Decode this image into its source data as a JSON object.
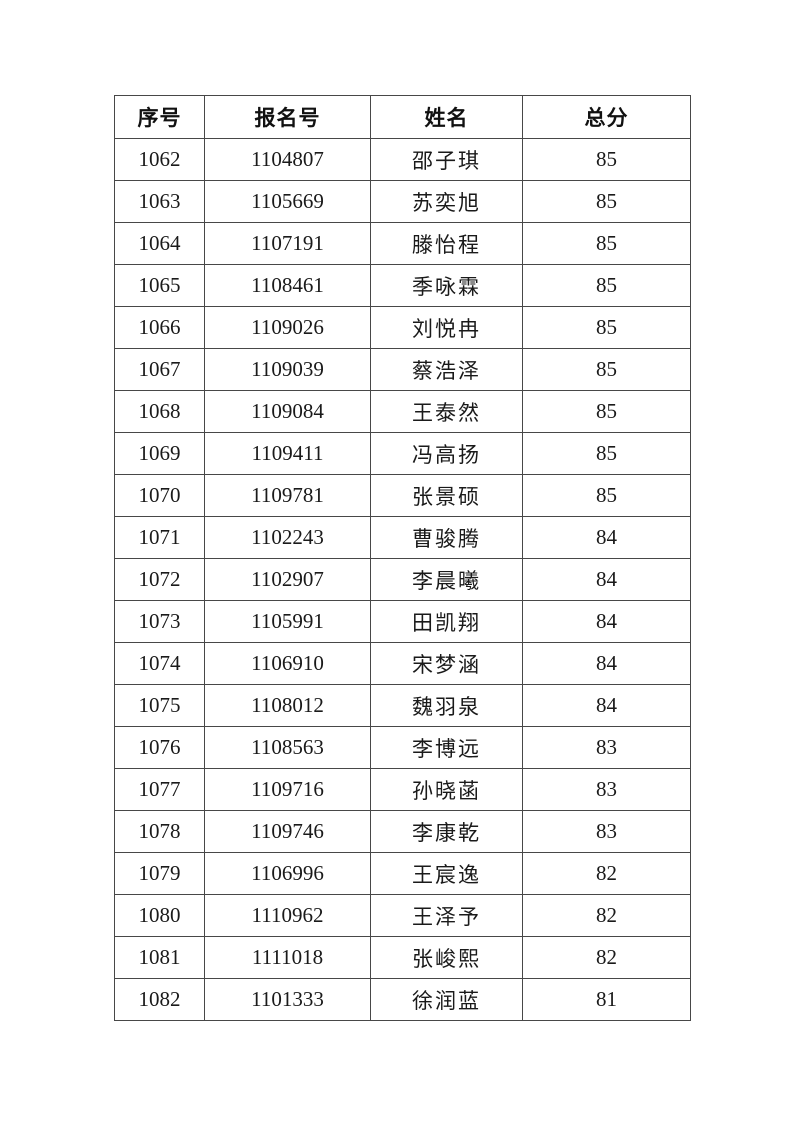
{
  "table": {
    "headers": [
      "序号",
      "报名号",
      "姓名",
      "总分"
    ],
    "rows": [
      [
        "1062",
        "1104807",
        "邵子琪",
        "85"
      ],
      [
        "1063",
        "1105669",
        "苏奕旭",
        "85"
      ],
      [
        "1064",
        "1107191",
        "滕怡程",
        "85"
      ],
      [
        "1065",
        "1108461",
        "季咏霖",
        "85"
      ],
      [
        "1066",
        "1109026",
        "刘悦冉",
        "85"
      ],
      [
        "1067",
        "1109039",
        "蔡浩泽",
        "85"
      ],
      [
        "1068",
        "1109084",
        "王泰然",
        "85"
      ],
      [
        "1069",
        "1109411",
        "冯高扬",
        "85"
      ],
      [
        "1070",
        "1109781",
        "张景硕",
        "85"
      ],
      [
        "1071",
        "1102243",
        "曹骏腾",
        "84"
      ],
      [
        "1072",
        "1102907",
        "李晨曦",
        "84"
      ],
      [
        "1073",
        "1105991",
        "田凯翔",
        "84"
      ],
      [
        "1074",
        "1106910",
        "宋梦涵",
        "84"
      ],
      [
        "1075",
        "1108012",
        "魏羽泉",
        "84"
      ],
      [
        "1076",
        "1108563",
        "李博远",
        "83"
      ],
      [
        "1077",
        "1109716",
        "孙晓菡",
        "83"
      ],
      [
        "1078",
        "1109746",
        "李康乾",
        "83"
      ],
      [
        "1079",
        "1106996",
        "王宸逸",
        "82"
      ],
      [
        "1080",
        "1110962",
        "王泽予",
        "82"
      ],
      [
        "1081",
        "1111018",
        "张峻熙",
        "82"
      ],
      [
        "1082",
        "1101333",
        "徐润蓝",
        "81"
      ]
    ]
  }
}
